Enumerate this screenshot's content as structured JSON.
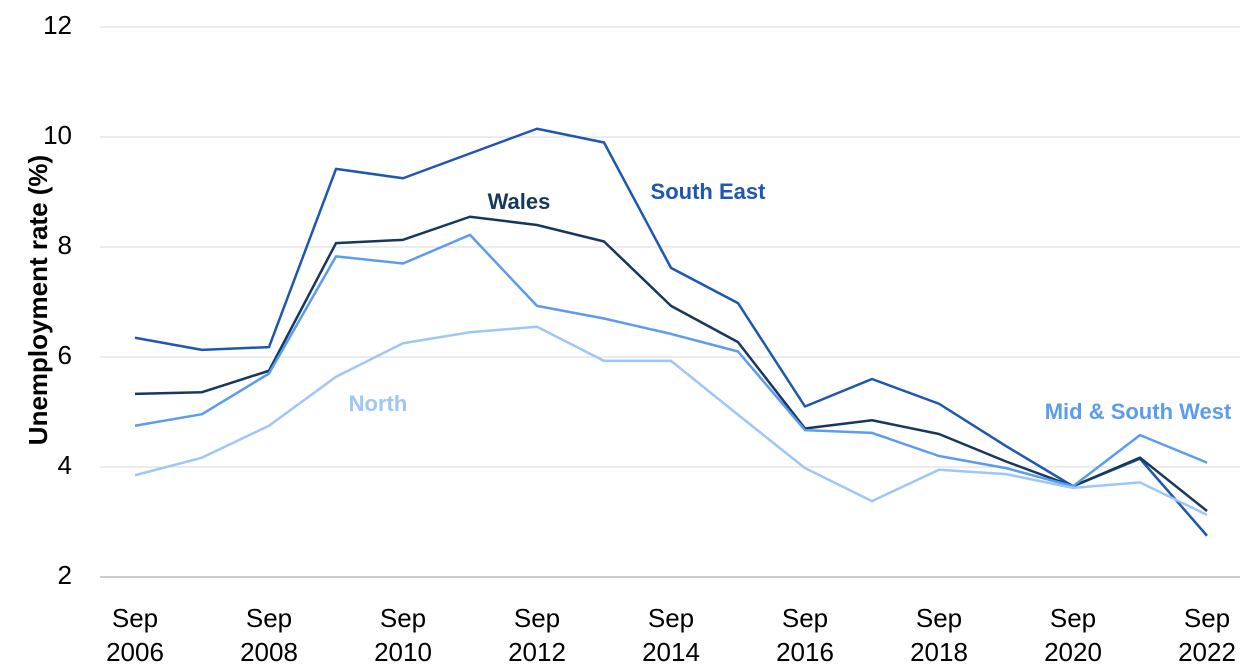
{
  "chart_data": {
    "type": "line",
    "y_label": "Unemployment rate (%)",
    "categories": [
      "Sep 2006",
      null,
      "Sep 2008",
      null,
      "Sep 2010",
      null,
      "Sep 2012",
      null,
      "Sep 2014",
      null,
      "Sep 2016",
      null,
      "Sep 2018",
      null,
      "Sep 2020",
      null,
      "Sep 2022"
    ],
    "series": [
      {
        "name": "South East",
        "color": "#1d57b0",
        "values": [
          6.35,
          6.13,
          6.18,
          9.42,
          9.25,
          9.7,
          10.15,
          9.9,
          7.62,
          6.98,
          5.1,
          5.6,
          5.15,
          4.38,
          3.65,
          4.15,
          2.75
        ]
      },
      {
        "name": "Wales",
        "color": "#17375e",
        "values": [
          5.33,
          5.36,
          5.75,
          8.07,
          8.13,
          8.55,
          8.4,
          8.1,
          6.93,
          6.27,
          4.7,
          4.85,
          4.6,
          4.1,
          3.65,
          4.17,
          3.2
        ]
      },
      {
        "name": "Mid & South West",
        "color": "#5b9cf0",
        "values": [
          4.75,
          4.96,
          5.7,
          7.83,
          7.7,
          8.22,
          6.93,
          6.7,
          6.42,
          6.1,
          4.67,
          4.62,
          4.2,
          3.98,
          3.65,
          4.58,
          4.08
        ]
      },
      {
        "name": "North",
        "color": "#9fc6f6",
        "values": [
          3.85,
          4.17,
          4.75,
          5.64,
          6.25,
          6.45,
          6.55,
          5.93,
          5.93,
          4.95,
          3.98,
          3.38,
          3.95,
          3.87,
          3.62,
          3.72,
          3.13
        ]
      }
    ],
    "ylim": [
      2,
      12
    ],
    "yticks": [
      2,
      4,
      6,
      8,
      10,
      12
    ],
    "grid": true
  }
}
